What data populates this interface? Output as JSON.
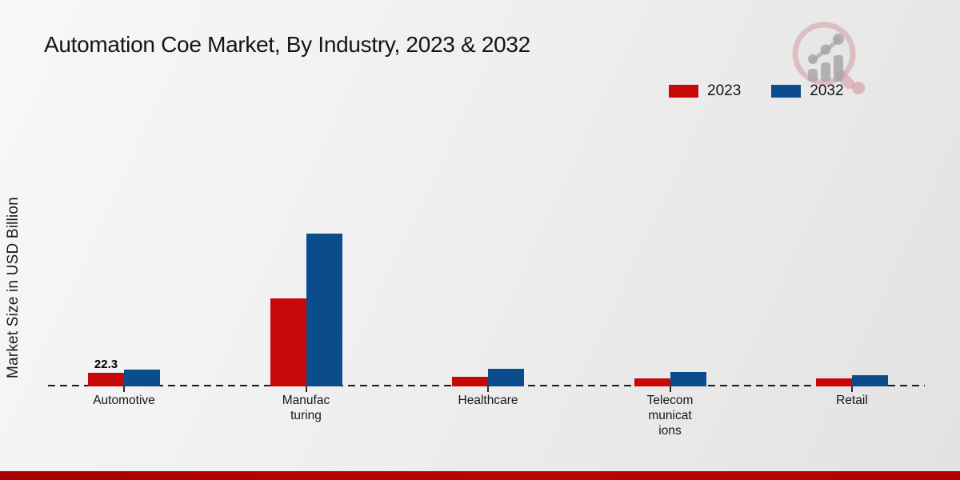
{
  "header": {
    "title": "Automation Coe Market, By Industry, 2023 & 2032",
    "logo_icon": "magnifier-bar-chart-logo"
  },
  "legend": {
    "position": "top-right",
    "items": [
      {
        "label": "2023",
        "color": "#c60808"
      },
      {
        "label": "2032",
        "color": "#0b4d8c"
      }
    ]
  },
  "chart_data": {
    "type": "bar",
    "title": "Automation Coe Market, By Industry, 2023 & 2032",
    "xlabel": "",
    "ylabel": "Market Size in USD Billion",
    "categories": [
      "Automotive",
      "Manufacturing",
      "Healthcare",
      "Telecommunications",
      "Retail"
    ],
    "tick_labels": [
      "Automotive",
      "Manufac\nturing",
      "Healthcare",
      "Telecom\nmunicat\nions",
      "Retail"
    ],
    "series": [
      {
        "name": "2023",
        "color": "#c60808",
        "values": [
          22.3,
          144.3,
          15.7,
          13.1,
          13.1
        ]
      },
      {
        "name": "2032",
        "color": "#0b4d8c",
        "values": [
          27.6,
          250.6,
          28.9,
          23.6,
          18.4
        ]
      }
    ],
    "data_labels": [
      {
        "series": "2023",
        "category": "Automotive",
        "text": "22.3"
      }
    ],
    "ylim": [
      0,
      260
    ],
    "grid": false,
    "legend_position": "top-right",
    "baseline_style": "dashed",
    "units": "USD Billion"
  },
  "footer": {
    "accent_bar_color": "#b00202"
  }
}
